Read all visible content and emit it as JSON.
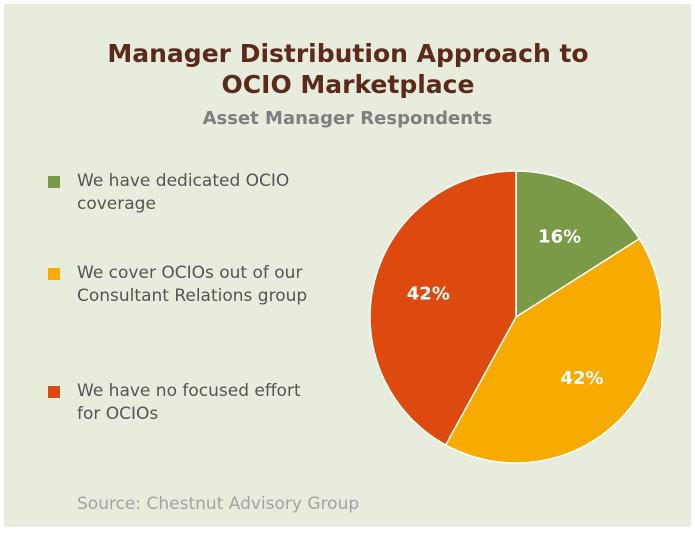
{
  "chart_data": {
    "type": "pie",
    "title": "Manager Distribution Approach to OCIO Marketplace",
    "subtitle": "Asset Manager Respondents",
    "categories": [
      "We have dedicated OCIO coverage",
      "We cover OCIOs out of our Consultant Relations group",
      "We have no focused effort for OCIOs"
    ],
    "values": [
      16,
      42,
      42
    ],
    "value_labels": [
      "16%",
      "42%",
      "42%"
    ],
    "colors": [
      "#7a9a47",
      "#f7aa00",
      "#dc4a0f"
    ],
    "source": "Source:  Chestnut Advisory Group"
  }
}
